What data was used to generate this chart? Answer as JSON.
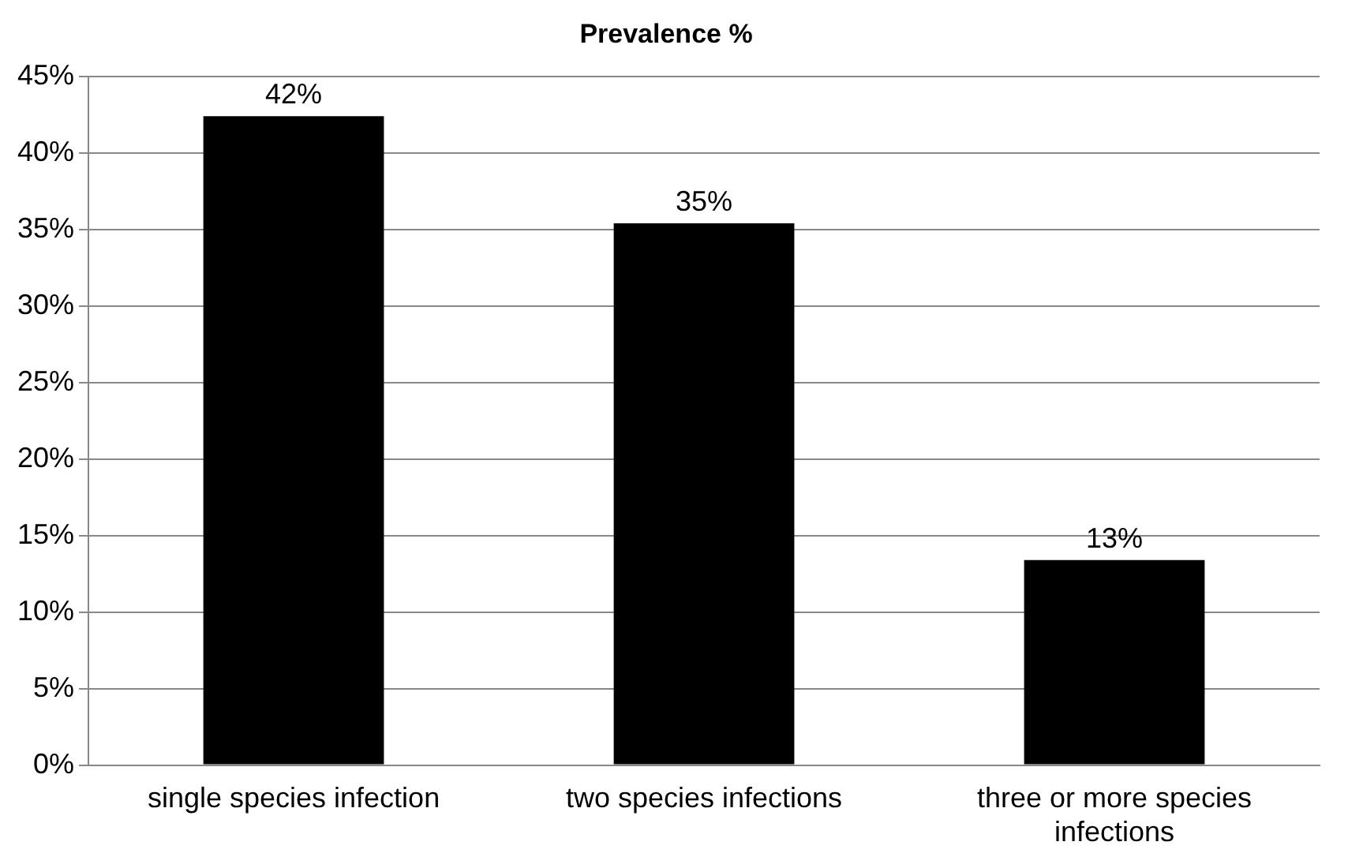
{
  "chart_data": {
    "type": "bar",
    "title": "Prevalence %",
    "categories": [
      "single species infection",
      "two species infections",
      "three or more species infections"
    ],
    "values": [
      42.4,
      35.4,
      13.4
    ],
    "value_labels": [
      "42%",
      "35%",
      "13%"
    ],
    "color": "#000000",
    "ylim": [
      0,
      45
    ],
    "yticks": [
      {
        "value": 0,
        "label": "0%"
      },
      {
        "value": 5,
        "label": "5%"
      },
      {
        "value": 10,
        "label": "10%"
      },
      {
        "value": 15,
        "label": "15%"
      },
      {
        "value": 20,
        "label": "20%"
      },
      {
        "value": 25,
        "label": "25%"
      },
      {
        "value": 30,
        "label": "30%"
      },
      {
        "value": 35,
        "label": "35%"
      },
      {
        "value": 40,
        "label": "40%"
      },
      {
        "value": 45,
        "label": "45%"
      }
    ],
    "grid": "y",
    "legend": false
  }
}
